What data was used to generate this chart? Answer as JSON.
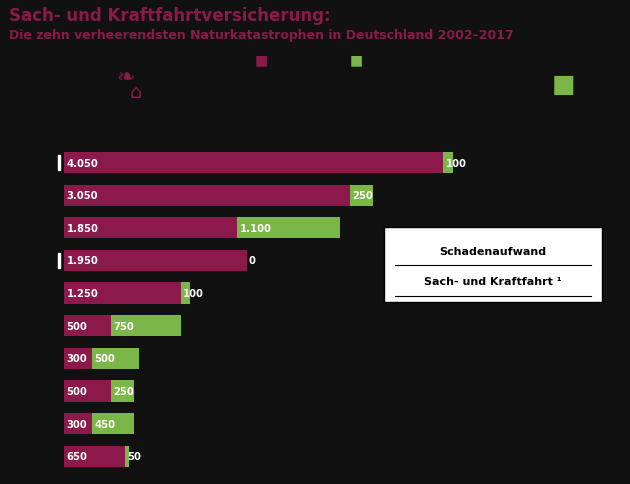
{
  "title_line1": "Sach- und Kraftfahrtversicherung:",
  "title_line2": "Die zehn verheerendsten Naturkatastrophen in Deutschland 2002–2017",
  "sach_values": [
    4050,
    3050,
    1850,
    1950,
    1250,
    500,
    300,
    500,
    300,
    650
  ],
  "kfz_values": [
    100,
    250,
    1100,
    0,
    100,
    750,
    500,
    250,
    450,
    50
  ],
  "sach_color": "#8B1A4A",
  "kfz_color": "#7AB648",
  "bg_color": "#111111",
  "bar_height": 0.65,
  "special_bars": [
    0,
    3
  ],
  "legend_text_line1": "Schadenaufwand",
  "legend_text_line2": "Sach- und Kraftfahrt ¹",
  "title_color": "#8B1A4A",
  "max_val": 5300
}
